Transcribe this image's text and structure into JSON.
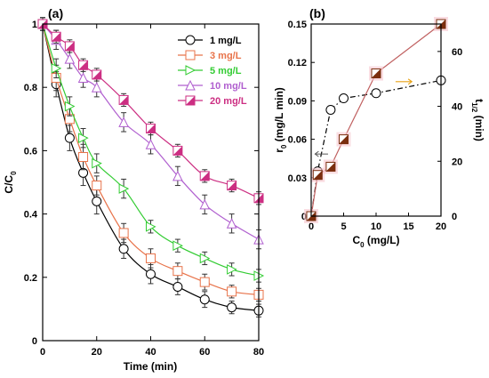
{
  "chart_data": [
    {
      "panel": "(a)",
      "type": "line",
      "xlabel": "Time (min)",
      "ylabel": "C/C0",
      "xlim": [
        0,
        80
      ],
      "ylim": [
        0,
        1
      ],
      "xticks": [
        "0",
        "20",
        "40",
        "60",
        "80"
      ],
      "yticks": [
        "0",
        "0.2",
        "0.4",
        "0.6",
        "0.8",
        "1"
      ],
      "x": [
        0,
        5,
        10,
        15,
        20,
        30,
        40,
        50,
        60,
        70,
        80
      ],
      "legend_position": "top-right",
      "series": [
        {
          "name": "1 mg/L",
          "color": "#000000",
          "marker": "circle",
          "values": [
            1.0,
            0.81,
            0.64,
            0.53,
            0.44,
            0.29,
            0.21,
            0.17,
            0.13,
            0.105,
            0.095
          ],
          "errors": [
            0.02,
            0.04,
            0.04,
            0.04,
            0.04,
            0.03,
            0.03,
            0.025,
            0.025,
            0.02,
            0.02
          ]
        },
        {
          "name": "3 mg/L",
          "color": "#E8734A",
          "marker": "square",
          "values": [
            1.0,
            0.83,
            0.7,
            0.58,
            0.49,
            0.34,
            0.26,
            0.22,
            0.185,
            0.155,
            0.145
          ],
          "errors": [
            0.02,
            0.04,
            0.04,
            0.04,
            0.03,
            0.03,
            0.03,
            0.025,
            0.025,
            0.02,
            0.02
          ]
        },
        {
          "name": "5 mg/L",
          "color": "#33CC33",
          "marker": "triangle-right",
          "values": [
            1.0,
            0.86,
            0.74,
            0.64,
            0.56,
            0.48,
            0.36,
            0.3,
            0.26,
            0.225,
            0.205
          ],
          "errors": [
            0.02,
            0.03,
            0.03,
            0.03,
            0.03,
            0.03,
            0.02,
            0.02,
            0.02,
            0.02,
            0.02
          ]
        },
        {
          "name": "10 mg/L",
          "color": "#B05FCF",
          "marker": "triangle-up",
          "values": [
            1.0,
            0.95,
            0.89,
            0.83,
            0.8,
            0.69,
            0.62,
            0.52,
            0.43,
            0.37,
            0.32
          ],
          "errors": [
            0.02,
            0.03,
            0.03,
            0.03,
            0.03,
            0.03,
            0.03,
            0.03,
            0.03,
            0.03,
            0.03
          ]
        },
        {
          "name": "20 mg/L",
          "color": "#CC2E82",
          "marker": "square-half",
          "values": [
            1.0,
            0.96,
            0.93,
            0.87,
            0.84,
            0.76,
            0.67,
            0.6,
            0.52,
            0.49,
            0.45
          ],
          "errors": [
            0.02,
            0.02,
            0.02,
            0.02,
            0.02,
            0.02,
            0.02,
            0.02,
            0.02,
            0.02,
            0.02
          ]
        }
      ]
    },
    {
      "panel": "(b)",
      "type": "line",
      "xlabel": "C0 (mg/L)",
      "ylabel": "r0 (mg/L min)",
      "y2label": "t1/2 (min)",
      "xlim": [
        0,
        20
      ],
      "ylim": [
        0,
        0.15
      ],
      "y2lim": [
        0,
        70
      ],
      "xticks": [
        "0",
        "5",
        "10",
        "15",
        "20"
      ],
      "yticks": [
        "0",
        "0.03",
        "0.06",
        "0.09",
        "0.12",
        "0.15"
      ],
      "y2ticks": [
        "0",
        "20",
        "40",
        "60"
      ],
      "series": [
        {
          "axis": "left",
          "color": "#000000",
          "marker": "circle",
          "line": "dash-dot",
          "x": [
            0,
            1,
            3,
            5,
            10,
            20
          ],
          "values": [
            0,
            0.035,
            0.083,
            0.092,
            0.096,
            0.106
          ]
        },
        {
          "axis": "right",
          "color": "#C06060",
          "marker": "square-half",
          "line": "solid",
          "x": [
            0,
            1,
            3,
            5,
            10,
            20
          ],
          "values": [
            0,
            15,
            18,
            28,
            52,
            70
          ]
        }
      ]
    }
  ]
}
